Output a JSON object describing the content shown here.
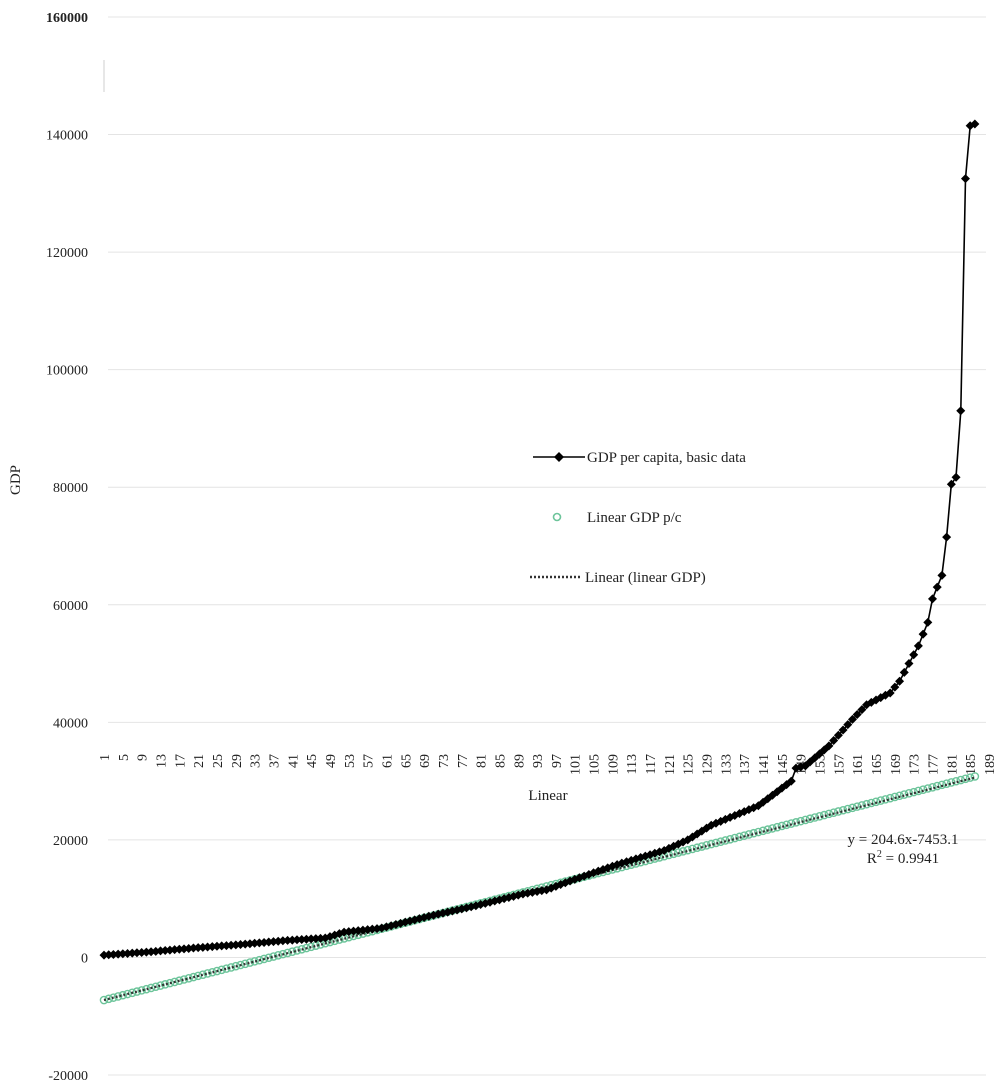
{
  "chart_data": {
    "type": "line",
    "xlabel": "Linear",
    "ylabel": "GDP",
    "ylim": [
      -20000,
      160000
    ],
    "y_ticks": [
      -20000,
      0,
      20000,
      40000,
      60000,
      80000,
      100000,
      120000,
      140000,
      160000
    ],
    "x_range": [
      1,
      189
    ],
    "x_tick_step": 4,
    "grid": "horizontal",
    "legend_placement": "center-right",
    "series": [
      {
        "name": "GDP per capita, basic data",
        "style": "black line with diamond markers",
        "color": "#000000",
        "anchors": [
          [
            1,
            400
          ],
          [
            10,
            900
          ],
          [
            20,
            1600
          ],
          [
            30,
            2200
          ],
          [
            40,
            2900
          ],
          [
            48,
            3300
          ],
          [
            52,
            4300
          ],
          [
            60,
            5000
          ],
          [
            70,
            7000
          ],
          [
            80,
            8800
          ],
          [
            90,
            10800
          ],
          [
            95,
            11500
          ],
          [
            100,
            13000
          ],
          [
            110,
            15800
          ],
          [
            120,
            18200
          ],
          [
            125,
            20000
          ],
          [
            130,
            22500
          ],
          [
            140,
            25800
          ],
          [
            147,
            30000
          ],
          [
            148,
            32200
          ],
          [
            150,
            32600
          ],
          [
            155,
            36000
          ],
          [
            160,
            40500
          ],
          [
            163,
            43000
          ],
          [
            168,
            45000
          ],
          [
            170,
            47000
          ],
          [
            172,
            50000
          ],
          [
            174,
            53000
          ],
          [
            176,
            57000
          ],
          [
            177,
            61000
          ],
          [
            179,
            65000
          ],
          [
            180,
            71500
          ],
          [
            181,
            80500
          ],
          [
            182,
            81700
          ],
          [
            183,
            93000
          ],
          [
            184,
            132500
          ],
          [
            185,
            141500
          ],
          [
            186,
            141800
          ]
        ]
      },
      {
        "name": "Linear GDP p/c",
        "style": "green open circles",
        "color": "#6cc49a",
        "start": [
          1,
          -7250
        ],
        "end": [
          186,
          30800
        ]
      },
      {
        "name": "Linear  (linear GDP)",
        "style": "black dotted trendline",
        "color": "#333333",
        "slope": 204.6,
        "intercept": -7453.1
      }
    ],
    "annotations": {
      "equation": "y = 204.6x-7453.1",
      "r2_prefix": "R",
      "r2_sup": "2",
      "r2_value": " = 0.9941"
    }
  }
}
